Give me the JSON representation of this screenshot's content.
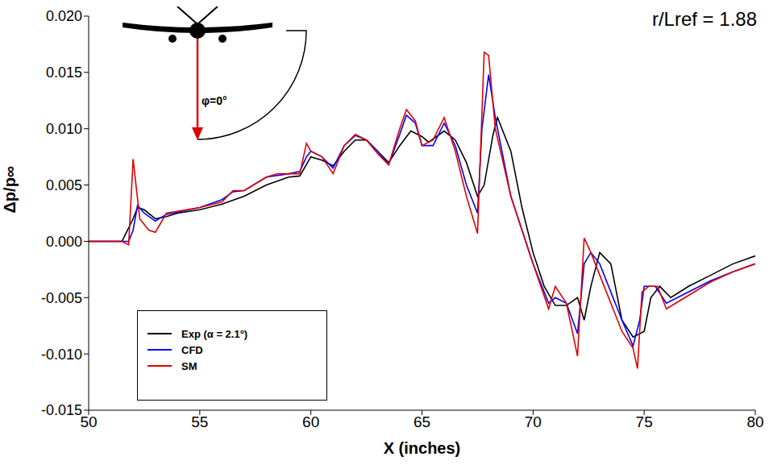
{
  "chart_data": {
    "type": "line",
    "title": "r/Lref = 1.88",
    "x_label": "X (inches)",
    "y_label": "Δp/p∞",
    "annotations": [
      "φ=0°"
    ],
    "xlim": [
      50,
      80
    ],
    "xticks": [
      50,
      55,
      60,
      65,
      70,
      75,
      80
    ],
    "ylim": [
      -0.015,
      0.02
    ],
    "yticks": [
      {
        "value": -0.015,
        "label": "-0.015"
      },
      {
        "value": -0.01,
        "label": "-0.010"
      },
      {
        "value": -0.005,
        "label": "-0.005"
      },
      {
        "value": 0,
        "label": "0.000"
      },
      {
        "value": 0.005,
        "label": "0.005"
      },
      {
        "value": 0.01,
        "label": "0.010"
      },
      {
        "value": 0.015,
        "label": "0.015"
      },
      {
        "value": 0.02,
        "label": "0.020"
      }
    ],
    "grid": false,
    "legend": "lower left",
    "series": [
      {
        "name": "Exp (α = 2.1°)",
        "color": "#000000",
        "x": [
          50,
          51.5,
          52.0,
          52.2,
          52.5,
          53,
          53.5,
          54,
          55,
          56,
          57,
          58,
          59,
          59.5,
          60,
          60.5,
          61,
          61.5,
          62,
          62.5,
          63,
          63.5,
          64,
          64.5,
          65,
          65.3,
          66,
          66.5,
          67,
          67.5,
          67.8,
          68.2,
          68.4,
          69,
          69.5,
          70,
          70.5,
          71,
          71.5,
          72,
          72.3,
          72.6,
          73,
          73.5,
          74,
          74.5,
          75,
          75.3,
          75.7,
          76.2,
          77,
          78,
          79,
          80
        ],
        "values": [
          0,
          0,
          0.002,
          0.003,
          0.0028,
          0.002,
          0.0022,
          0.0025,
          0.0028,
          0.0033,
          0.004,
          0.005,
          0.0057,
          0.0058,
          0.0075,
          0.0072,
          0.0067,
          0.008,
          0.009,
          0.009,
          0.008,
          0.007,
          0.0085,
          0.0098,
          0.0093,
          0.0088,
          0.0098,
          0.009,
          0.007,
          0.004,
          0.005,
          0.0095,
          0.011,
          0.008,
          0.003,
          -0.001,
          -0.004,
          -0.0057,
          -0.0057,
          -0.005,
          -0.007,
          -0.004,
          -0.001,
          -0.002,
          -0.007,
          -0.0085,
          -0.008,
          -0.005,
          -0.004,
          -0.005,
          -0.004,
          -0.003,
          -0.002,
          -0.0013
        ]
      },
      {
        "name": "CFD",
        "color": "#0000ff",
        "x": [
          50,
          51.8,
          52,
          52.2,
          52.5,
          53,
          53.5,
          55,
          56,
          56.5,
          57,
          58,
          59,
          59.5,
          59.8,
          60,
          60.5,
          61,
          61.5,
          62,
          62.5,
          63,
          63.5,
          64,
          64.3,
          64.7,
          65,
          65.5,
          66,
          66.5,
          67,
          67.5,
          67.7,
          68,
          68.3,
          69,
          70,
          70.7,
          71,
          71.5,
          72,
          72.3,
          72.6,
          73,
          74,
          74.5,
          74.8,
          75,
          75.5,
          76,
          77,
          78,
          79,
          80
        ],
        "values": [
          0,
          0,
          0.001,
          0.0032,
          0.0025,
          0.0018,
          0.0024,
          0.003,
          0.0037,
          0.0044,
          0.0045,
          0.0057,
          0.006,
          0.0062,
          0.0075,
          0.008,
          0.0075,
          0.0065,
          0.0085,
          0.0094,
          0.009,
          0.008,
          0.0068,
          0.0095,
          0.0112,
          0.0105,
          0.0085,
          0.0085,
          0.0105,
          0.0085,
          0.005,
          0.0025,
          0.01,
          0.0148,
          0.011,
          0.004,
          -0.002,
          -0.0055,
          -0.005,
          -0.0055,
          -0.0082,
          -0.002,
          -0.001,
          -0.002,
          -0.007,
          -0.0093,
          -0.007,
          -0.004,
          -0.004,
          -0.0055,
          -0.0045,
          -0.0035,
          -0.0027,
          -0.002
        ]
      },
      {
        "name": "SM",
        "color": "#e00000",
        "x": [
          50,
          51.5,
          51.8,
          52,
          52.3,
          52.7,
          53,
          53.5,
          55,
          56,
          56.5,
          57,
          58,
          58.5,
          59.5,
          59.8,
          60,
          60.5,
          61,
          61.5,
          62,
          62.5,
          63,
          63.5,
          64,
          64.3,
          64.7,
          65,
          65.5,
          66,
          66.5,
          67,
          67.5,
          67.8,
          68,
          68.3,
          69,
          70,
          70.7,
          71,
          71.5,
          72,
          72.3,
          72.6,
          73,
          74,
          74.5,
          74.7,
          74.9,
          75.2,
          75.6,
          76,
          77,
          78,
          79,
          80
        ],
        "values": [
          0,
          0,
          -0.0003,
          0.0073,
          0.002,
          0.001,
          0.0008,
          0.0025,
          0.003,
          0.0035,
          0.0045,
          0.0045,
          0.0057,
          0.006,
          0.006,
          0.0087,
          0.008,
          0.0075,
          0.006,
          0.0085,
          0.0095,
          0.009,
          0.0078,
          0.0068,
          0.01,
          0.0117,
          0.0107,
          0.0085,
          0.009,
          0.011,
          0.008,
          0.004,
          0.0007,
          0.0168,
          0.0165,
          0.01,
          0.004,
          -0.002,
          -0.006,
          -0.004,
          -0.0055,
          -0.0102,
          0.0003,
          -0.001,
          -0.003,
          -0.008,
          -0.0095,
          -0.0113,
          -0.0045,
          -0.004,
          -0.004,
          -0.006,
          -0.0048,
          -0.0036,
          -0.0027,
          -0.002
        ]
      }
    ]
  }
}
